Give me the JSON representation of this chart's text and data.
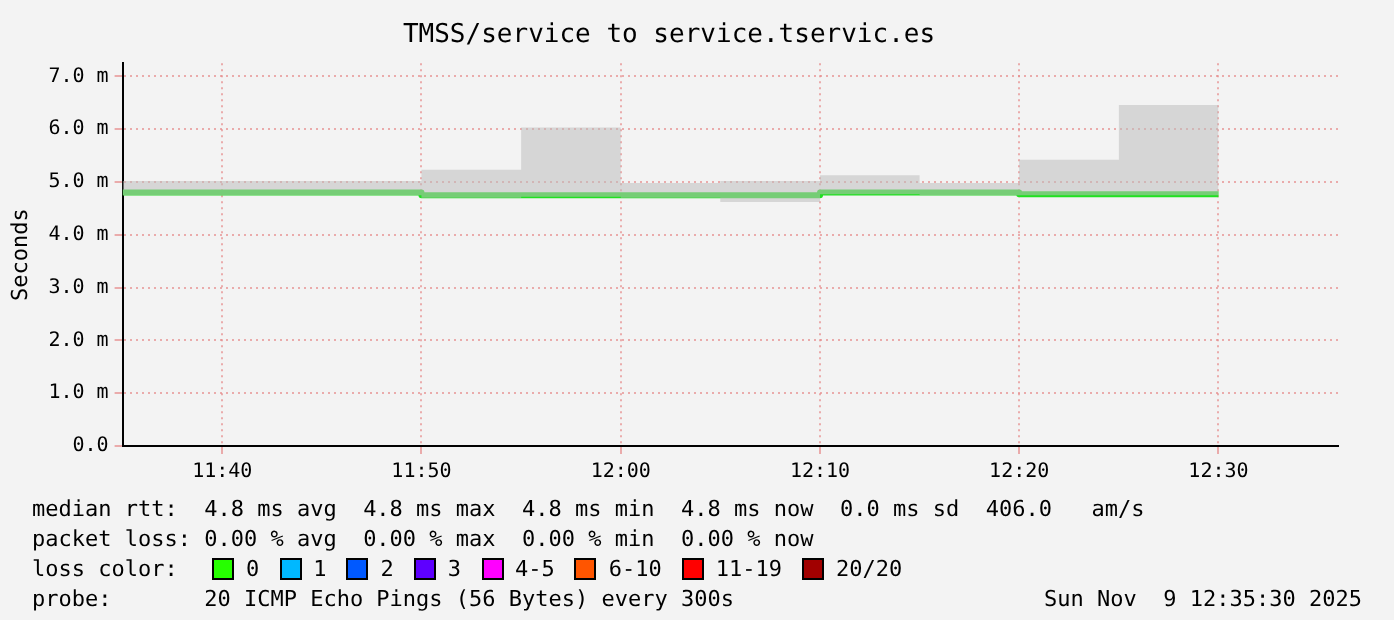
{
  "chart_data": {
    "type": "step",
    "title": "TMSS/service to service.tservic.es",
    "ylabel": "Seconds",
    "x": [
      11.5833,
      11.75,
      11.8333,
      11.9167,
      12.0,
      12.0833,
      12.1667,
      12.25,
      12.3333,
      12.4167,
      12.5
    ],
    "series": [
      {
        "color": "#20e020",
        "values": [
          4.8,
          4.8,
          4.75,
          4.75,
          4.75,
          4.75,
          4.8,
          4.8,
          4.77,
          4.77,
          4.77
        ],
        "lower": [
          4.75,
          4.75,
          4.7,
          4.72,
          4.7,
          4.62,
          4.77,
          4.75,
          4.75,
          4.75,
          4.77
        ],
        "upper": [
          5.02,
          5.02,
          5.23,
          6.03,
          4.98,
          5.02,
          5.13,
          4.98,
          5.42,
          6.46,
          4.77
        ]
      }
    ],
    "xlim": [
      11.5833,
      12.6
    ],
    "xticks": [
      {
        "value": 11.6667,
        "label": "11:40"
      },
      {
        "value": 11.8333,
        "label": "11:50"
      },
      {
        "value": 12.0,
        "label": "12:00"
      },
      {
        "value": 12.1667,
        "label": "12:10"
      },
      {
        "value": 12.3333,
        "label": "12:20"
      },
      {
        "value": 12.5,
        "label": "12:30"
      }
    ],
    "ylim": [
      0,
      7.25
    ],
    "yticks": [
      {
        "value": 0,
        "label": "0.0"
      },
      {
        "value": 1,
        "label": "1.0 m"
      },
      {
        "value": 2,
        "label": "2.0 m"
      },
      {
        "value": 3,
        "label": "3.0 m"
      },
      {
        "value": 4,
        "label": "4.0 m"
      },
      {
        "value": 5,
        "label": "5.0 m"
      },
      {
        "value": 6,
        "label": "6.0 m"
      },
      {
        "value": 7,
        "label": "7.0 m"
      }
    ],
    "grid": true,
    "annotations": [
      "median rtt:  4.8 ms avg  4.8 ms max  4.8 ms min  4.8 ms now  0.0 ms sd  406.0   am/s",
      "packet loss: 0.00 % avg  0.00 % max  0.00 % min  0.00 % now",
      "loss color:",
      "0",
      "1",
      "2",
      "3",
      "4-5",
      "6-10",
      "11-19",
      "20/20",
      "probe:       20 ICMP Echo Pings (56 Bytes) every 300s",
      "Sun Nov  9 12:35:30 2025"
    ]
  }
}
